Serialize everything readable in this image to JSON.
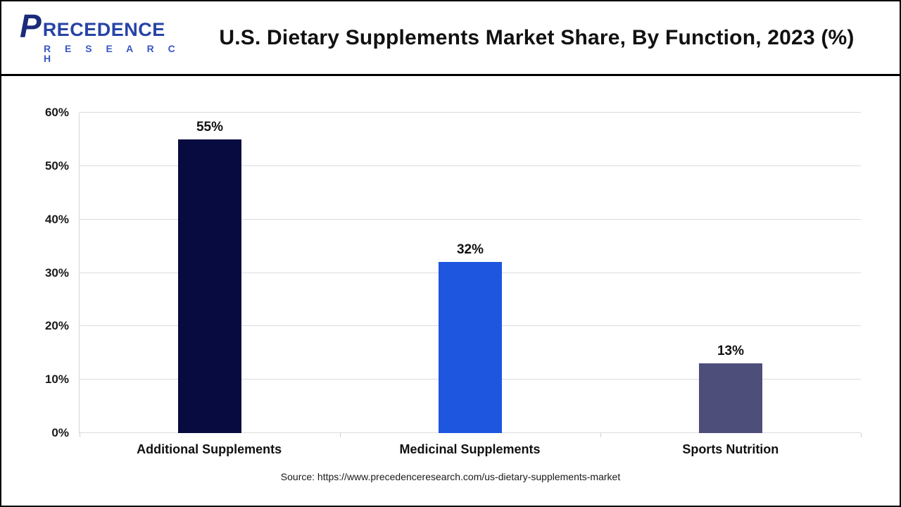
{
  "logo": {
    "p": "P",
    "rest": "RECEDENCE",
    "line2": "R E S E A R C H"
  },
  "header": {
    "title": "U.S. Dietary Supplements Market Share, By Function, 2023 (%)"
  },
  "chart_data": {
    "type": "bar",
    "title": "U.S. Dietary Supplements Market Share, By Function, 2023 (%)",
    "categories": [
      "Additional Supplements",
      "Medicinal Supplements",
      "Sports Nutrition"
    ],
    "values": [
      55,
      32,
      13
    ],
    "value_labels": [
      "55%",
      "32%",
      "13%"
    ],
    "bar_colors": [
      "#070b3f",
      "#1e56e0",
      "#4e4e7a"
    ],
    "xlabel": "",
    "ylabel": "",
    "ylim": [
      0,
      60
    ],
    "ytick_step": 10,
    "ytick_labels": [
      "0%",
      "10%",
      "20%",
      "30%",
      "40%",
      "50%",
      "60%"
    ],
    "grid": true,
    "legend": "none"
  },
  "footer": {
    "source": "Source: https://www.precedenceresearch.com/us-dietary-supplements-market"
  }
}
